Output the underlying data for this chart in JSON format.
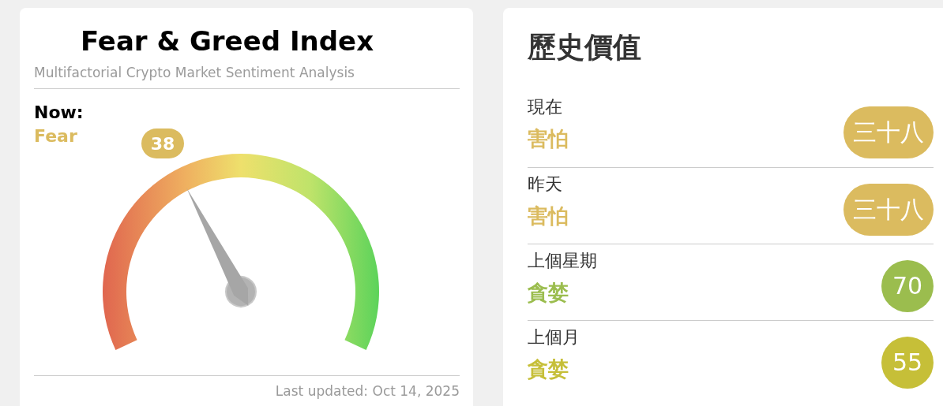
{
  "chart_data": [
    {
      "type": "other",
      "title": "Fear & Greed Index",
      "subtitle": "Multifactorial Crypto Market Sentiment Analysis",
      "annotations": [
        "Now:",
        "Fear",
        "Last updated: Oct 14, 2025"
      ],
      "values": [
        38
      ],
      "data_labels": true,
      "color": "#dbbb5f"
    },
    {
      "type": "other",
      "title": "歷史價值",
      "categories": [
        "現在",
        "昨天",
        "上個星期",
        "上個月"
      ],
      "annotations": [
        "害怕",
        "害怕",
        "貪婪",
        "貪婪"
      ],
      "value_labels": [
        "三十八",
        "三十八",
        "70",
        "55"
      ],
      "colors": [
        "#dbbb5f",
        "#dbbb5f",
        "#9bbd4e",
        "#c6bf38"
      ]
    }
  ]
}
